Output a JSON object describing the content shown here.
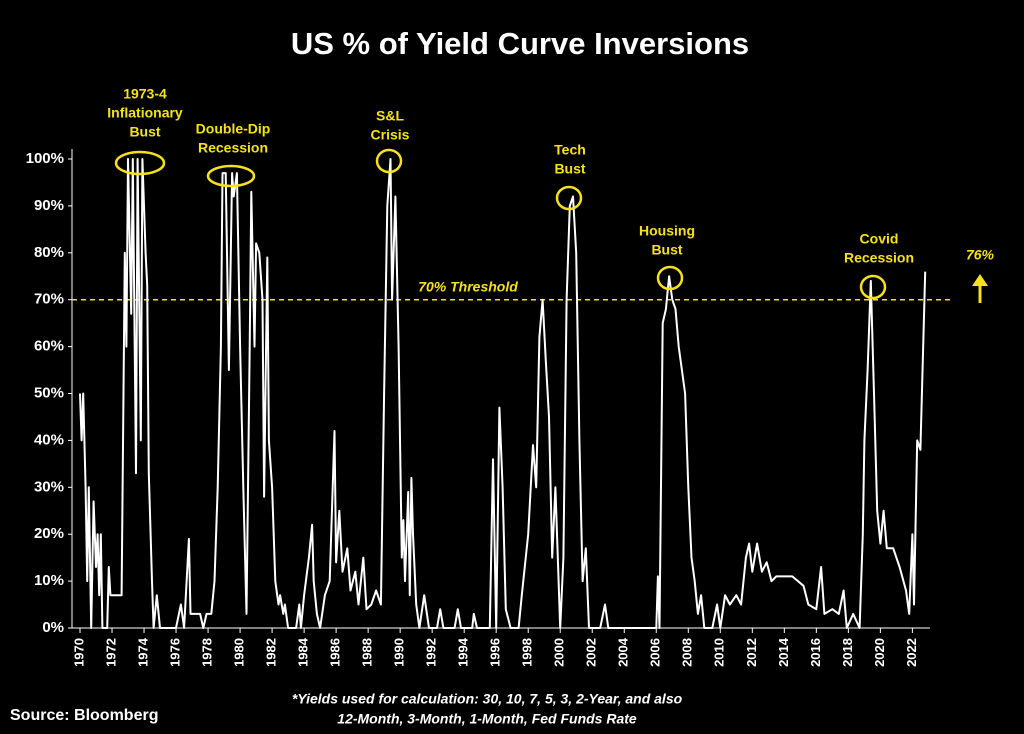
{
  "chart_data": {
    "type": "line",
    "title": "US % of Yield Curve Inversions",
    "color": "#ffffff",
    "highlight_color": "#f5e11c",
    "x": [
      1970.0,
      1970.1,
      1970.2,
      1970.35,
      1970.45,
      1970.55,
      1970.7,
      1970.85,
      1971.0,
      1971.1,
      1971.2,
      1971.3,
      1971.4,
      1971.7,
      1971.8,
      1971.9,
      1972.3,
      1972.6,
      1972.8,
      1972.9,
      1973.0,
      1973.2,
      1973.3,
      1973.5,
      1973.6,
      1973.8,
      1973.9,
      1974.1,
      1974.2,
      1974.3,
      1974.5,
      1974.6,
      1974.8,
      1975.0,
      1976.0,
      1976.3,
      1976.5,
      1976.8,
      1976.9,
      1977.5,
      1977.7,
      1977.9,
      1978.2,
      1978.4,
      1978.6,
      1978.8,
      1978.9,
      1979.1,
      1979.3,
      1979.5,
      1979.6,
      1979.8,
      1980.0,
      1980.2,
      1980.4,
      1980.6,
      1980.7,
      1980.9,
      1981.0,
      1981.2,
      1981.4,
      1981.5,
      1981.7,
      1981.8,
      1982.0,
      1982.2,
      1982.4,
      1982.5,
      1982.7,
      1982.8,
      1983.0,
      1983.5,
      1983.7,
      1983.8,
      1984.0,
      1984.3,
      1984.5,
      1984.6,
      1984.8,
      1985.0,
      1985.3,
      1985.6,
      1985.9,
      1986.0,
      1986.2,
      1986.4,
      1986.7,
      1986.9,
      1987.2,
      1987.4,
      1987.7,
      1987.9,
      1988.2,
      1988.5,
      1988.8,
      1989.0,
      1989.2,
      1989.4,
      1989.5,
      1989.7,
      1989.9,
      1990.1,
      1990.2,
      1990.3,
      1990.5,
      1990.6,
      1990.7,
      1990.8,
      1991.0,
      1991.2,
      1991.5,
      1991.8,
      1992.3,
      1992.5,
      1992.7,
      1993.4,
      1993.6,
      1993.8,
      1994.5,
      1994.6,
      1994.8,
      1995.6,
      1995.8,
      1996.0,
      1996.2,
      1996.4,
      1996.6,
      1996.9,
      1997.4,
      1997.6,
      1998.0,
      1998.3,
      1998.5,
      1998.7,
      1998.9,
      1999.1,
      1999.3,
      1999.5,
      1999.7,
      1999.9,
      2000.0,
      2000.2,
      2000.4,
      2000.6,
      2000.8,
      2001.0,
      2001.2,
      2001.4,
      2001.6,
      2001.8,
      2002.5,
      2002.8,
      2003.0,
      2006.0,
      2006.1,
      2006.2,
      2006.4,
      2006.6,
      2006.8,
      2007.0,
      2007.2,
      2007.4,
      2007.6,
      2007.8,
      2008.0,
      2008.2,
      2008.4,
      2008.6,
      2008.8,
      2009.0,
      2009.5,
      2009.8,
      2010.0,
      2010.3,
      2010.6,
      2011.0,
      2011.3,
      2011.6,
      2011.8,
      2012.0,
      2012.3,
      2012.6,
      2012.9,
      2013.2,
      2013.5,
      2014.5,
      2015.2,
      2015.5,
      2016.0,
      2016.3,
      2016.5,
      2017.0,
      2017.4,
      2017.7,
      2017.9,
      2018.3,
      2018.7,
      2018.9,
      2019.0,
      2019.2,
      2019.4,
      2019.6,
      2019.8,
      2020.0,
      2020.2,
      2020.4,
      2020.8,
      2021.2,
      2021.6,
      2021.8,
      2022.0,
      2022.1,
      2022.3,
      2022.5,
      2022.8
    ],
    "values": [
      50,
      40,
      50,
      30,
      10,
      30,
      0,
      27,
      13,
      20,
      7,
      20,
      0,
      0,
      13,
      7,
      7,
      7,
      80,
      60,
      100,
      67,
      100,
      33,
      100,
      40,
      100,
      80,
      73,
      33,
      10,
      0,
      7,
      0,
      0,
      5,
      0,
      19,
      3,
      3,
      0,
      3,
      3,
      10,
      30,
      60,
      97,
      97,
      55,
      97,
      92,
      97,
      60,
      30,
      3,
      60,
      93,
      60,
      82,
      80,
      70,
      28,
      79,
      40,
      30,
      10,
      5,
      7,
      3,
      5,
      0,
      0,
      5,
      0,
      7,
      15,
      22,
      10,
      3,
      0,
      7,
      10,
      42,
      14,
      25,
      12,
      17,
      8,
      12,
      5,
      15,
      4,
      5,
      8,
      5,
      50,
      90,
      100,
      70,
      92,
      60,
      15,
      23,
      10,
      29,
      7,
      32,
      20,
      5,
      0,
      7,
      0,
      0,
      4,
      0,
      0,
      4,
      0,
      0,
      3,
      0,
      0,
      36,
      0,
      47,
      30,
      4,
      0,
      0,
      7,
      20,
      39,
      30,
      62,
      70,
      57,
      45,
      15,
      30,
      10,
      0,
      15,
      70,
      90,
      92,
      80,
      40,
      10,
      17,
      0,
      0,
      5,
      0,
      0,
      11,
      0,
      65,
      68,
      75,
      70,
      68,
      60,
      55,
      50,
      30,
      15,
      10,
      3,
      7,
      0,
      0,
      5,
      0,
      7,
      5,
      7,
      5,
      15,
      18,
      12,
      18,
      12,
      14,
      10,
      11,
      11,
      9,
      5,
      4,
      13,
      3,
      4,
      3,
      8,
      0,
      3,
      0,
      20,
      40,
      55,
      74,
      50,
      25,
      18,
      25,
      17,
      17,
      13,
      8,
      3,
      20,
      5,
      40,
      38,
      76
    ],
    "xlim": [
      1969.5,
      2023.1
    ],
    "ylim": [
      0,
      100
    ],
    "xticks": [
      1970,
      1972,
      1974,
      1976,
      1978,
      1980,
      1982,
      1984,
      1986,
      1988,
      1990,
      1992,
      1994,
      1996,
      1998,
      2000,
      2002,
      2004,
      2006,
      2008,
      2010,
      2012,
      2014,
      2016,
      2018,
      2020,
      2022
    ],
    "yticks": [
      {
        "value": 0,
        "label": "0%"
      },
      {
        "value": 10,
        "label": "10%"
      },
      {
        "value": 20,
        "label": "20%"
      },
      {
        "value": 30,
        "label": "30%"
      },
      {
        "value": 40,
        "label": "40%"
      },
      {
        "value": 50,
        "label": "50%"
      },
      {
        "value": 60,
        "label": "60%"
      },
      {
        "value": 70,
        "label": "70%"
      },
      {
        "value": 80,
        "label": "80%"
      },
      {
        "value": 90,
        "label": "90%"
      },
      {
        "value": 100,
        "label": "100%"
      }
    ],
    "threshold": {
      "value": 70,
      "label": "70% Threshold"
    },
    "end_label": {
      "value": 76,
      "label": "76%"
    },
    "annotations": [
      [
        "1973-4",
        "Inflationary",
        "Bust"
      ],
      [
        "Double-Dip",
        "Recession"
      ],
      [
        "S&L",
        "Crisis"
      ],
      [
        "Tech",
        "Bust"
      ],
      [
        "Housing",
        "Bust"
      ],
      [
        "Covid",
        "Recession"
      ]
    ],
    "footnote": [
      "*Yields used for calculation: 30, 10, 7, 5, 3, 2-Year, and also",
      "12-Month, 3-Month, 1-Month, Fed Funds Rate"
    ],
    "source": "Source: Bloomberg"
  }
}
